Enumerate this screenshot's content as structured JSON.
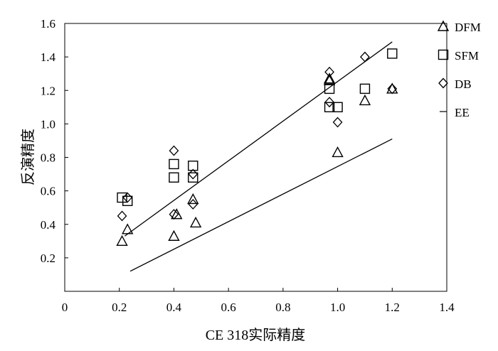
{
  "chart_data": {
    "type": "scatter",
    "xlabel": "CE 318实际精度",
    "ylabel": "反演精度",
    "xlim": [
      0,
      1.4
    ],
    "ylim": [
      0,
      1.6
    ],
    "x_ticks": [
      "0",
      "0.2",
      "0.4",
      "0.6",
      "0.8",
      "1.0",
      "1.2",
      "1.4"
    ],
    "y_ticks": [
      "0.2",
      "0.4",
      "0.6",
      "0.8",
      "1.0",
      "1.2",
      "1.4",
      "1.6"
    ],
    "legend_position": "right",
    "series": [
      {
        "name": "DFM",
        "marker": "triangle",
        "x": [
          0.21,
          0.23,
          0.4,
          0.41,
          0.47,
          0.48,
          0.97,
          0.97,
          1.0,
          1.1,
          1.2
        ],
        "y": [
          0.3,
          0.37,
          0.33,
          0.46,
          0.55,
          0.41,
          1.27,
          1.26,
          0.83,
          1.14,
          1.21
        ]
      },
      {
        "name": "SFM",
        "marker": "square",
        "x": [
          0.21,
          0.23,
          0.4,
          0.4,
          0.47,
          0.47,
          0.97,
          0.97,
          1.0,
          1.1,
          1.2
        ],
        "y": [
          0.56,
          0.54,
          0.76,
          0.68,
          0.75,
          0.68,
          1.21,
          1.1,
          1.1,
          1.21,
          1.42
        ]
      },
      {
        "name": "DB",
        "marker": "diamond",
        "x": [
          0.21,
          0.23,
          0.4,
          0.4,
          0.47,
          0.47,
          0.97,
          0.97,
          1.0,
          1.1,
          1.2
        ],
        "y": [
          0.45,
          0.56,
          0.84,
          0.46,
          0.7,
          0.52,
          1.31,
          1.13,
          1.01,
          1.4,
          1.21
        ]
      },
      {
        "name": "EE",
        "marker": "line",
        "lines": [
          {
            "x": [
              0.22,
              1.2
            ],
            "y": [
              0.33,
              1.49
            ]
          },
          {
            "x": [
              0.24,
              1.2
            ],
            "y": [
              0.12,
              0.91
            ]
          }
        ]
      }
    ]
  }
}
